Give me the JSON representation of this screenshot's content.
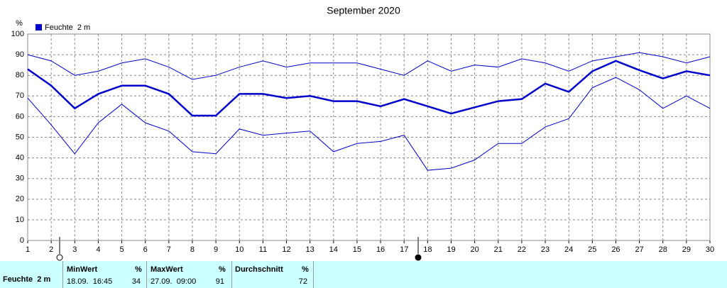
{
  "chart_data": {
    "type": "line",
    "title": "September 2020",
    "y_unit": "%",
    "x": [
      1,
      2,
      3,
      4,
      5,
      6,
      7,
      8,
      9,
      10,
      11,
      12,
      13,
      14,
      15,
      16,
      17,
      18,
      19,
      20,
      21,
      22,
      23,
      24,
      25,
      26,
      27,
      28,
      29,
      30
    ],
    "xlim": [
      1,
      30
    ],
    "xticks": [
      1,
      2,
      3,
      4,
      5,
      6,
      7,
      8,
      9,
      10,
      11,
      12,
      13,
      14,
      15,
      16,
      17,
      18,
      19,
      20,
      21,
      22,
      23,
      24,
      25,
      26,
      27,
      28,
      29,
      30
    ],
    "ylim": [
      0,
      100
    ],
    "yticks": [
      0,
      10,
      20,
      30,
      40,
      50,
      60,
      70,
      80,
      90,
      100
    ],
    "grid": true,
    "series": [
      {
        "color": "#0000cc",
        "line_width": 1,
        "values": [
          90,
          87,
          80,
          82,
          86,
          88,
          84,
          78,
          80,
          84,
          87,
          84,
          86,
          86,
          86,
          83,
          80,
          87,
          82,
          85,
          84,
          88,
          86,
          82,
          87,
          89,
          91,
          89,
          86,
          89
        ]
      },
      {
        "name": "Feuchte  2 m",
        "color": "#0000cc",
        "line_width": 2.5,
        "values": [
          83,
          75,
          64,
          71,
          75,
          75,
          71,
          60.5,
          60.5,
          71,
          71,
          69,
          70,
          67.5,
          67.5,
          65,
          68.5,
          65,
          61.5,
          64.5,
          67.5,
          68.5,
          76,
          72,
          82,
          87,
          82.5,
          78.5,
          82,
          80
        ]
      },
      {
        "color": "#0000cc",
        "line_width": 1,
        "values": [
          69,
          56,
          42,
          57,
          66,
          57,
          53,
          43,
          42,
          54,
          51,
          52,
          53,
          43,
          47,
          48,
          51,
          34,
          35,
          39,
          47,
          47,
          55,
          59,
          74,
          79,
          73,
          64,
          70,
          64
        ]
      }
    ]
  },
  "table": {
    "row_label": "Feuchte  2 m",
    "columns": [
      {
        "header": "MinWert",
        "unit": "%",
        "time": "18.09.  16:45",
        "value": 34
      },
      {
        "header": "MaxWert",
        "unit": "%",
        "time": "27.09.  09:00",
        "value": 91
      },
      {
        "header": "Durchschnitt",
        "unit": "%",
        "value": 72
      }
    ]
  }
}
